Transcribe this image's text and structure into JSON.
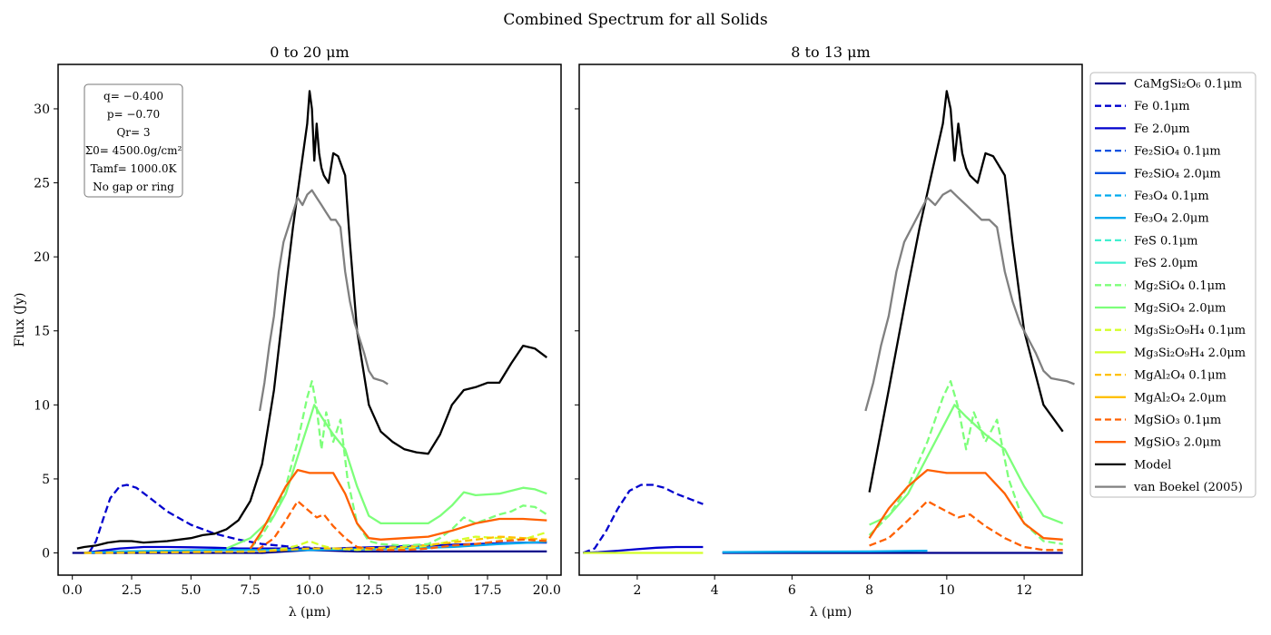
{
  "figure": {
    "suptitle": "Combined Spectrum for all Solids",
    "legend": [
      {
        "label": "CaMgSi₂O₆ 0.1μm",
        "color": "#00008b",
        "dash": false
      },
      {
        "label": "Fe 0.1μm",
        "color": "#0000cd",
        "dash": true
      },
      {
        "label": "Fe 2.0μm",
        "color": "#0000cd",
        "dash": false
      },
      {
        "label": "Fe₂SiO₄ 0.1μm",
        "color": "#0050e0",
        "dash": true
      },
      {
        "label": "Fe₂SiO₄ 2.0μm",
        "color": "#0050e0",
        "dash": false
      },
      {
        "label": "Fe₃O₄ 0.1μm",
        "color": "#00aaee",
        "dash": true
      },
      {
        "label": "Fe₃O₄ 2.0μm",
        "color": "#00aaee",
        "dash": false
      },
      {
        "label": "FeS 0.1μm",
        "color": "#40f0d0",
        "dash": true
      },
      {
        "label": "FeS 2.0μm",
        "color": "#40f0d0",
        "dash": false
      },
      {
        "label": "Mg₂SiO₄ 0.1μm",
        "color": "#7dff7a",
        "dash": true
      },
      {
        "label": "Mg₂SiO₄ 2.0μm",
        "color": "#7dff7a",
        "dash": false
      },
      {
        "label": "Mg₃Si₂O₉H₄ 0.1μm",
        "color": "#d4ff2a",
        "dash": true
      },
      {
        "label": "Mg₃Si₂O₉H₄ 2.0μm",
        "color": "#d4ff2a",
        "dash": false
      },
      {
        "label": "MgAl₂O₄ 0.1μm",
        "color": "#ffc000",
        "dash": true
      },
      {
        "label": "MgAl₂O₄ 2.0μm",
        "color": "#ffc000",
        "dash": false
      },
      {
        "label": "MgSiO₃ 0.1μm",
        "color": "#ff6000",
        "dash": true
      },
      {
        "label": "MgSiO₃ 2.0μm",
        "color": "#ff6000",
        "dash": false
      },
      {
        "label": "Model",
        "color": "#000000",
        "dash": false
      },
      {
        "label": "van Boekel (2005)",
        "color": "#808080",
        "dash": false
      }
    ],
    "param_box": [
      "q= −0.400",
      "p= −0.70",
      "Qr= 3",
      "Σ0= 4500.0g/cm²",
      "Tamf= 1000.0K",
      "No gap or ring"
    ]
  },
  "chart_data": [
    {
      "type": "line",
      "title": "0 to 20 μm",
      "xlabel": "λ (μm)",
      "ylabel": "Flux (Jy)",
      "xlim": [
        -0.6,
        20.6
      ],
      "ylim": [
        -1.5,
        33
      ],
      "xticks": [
        0,
        2.5,
        5,
        7.5,
        10,
        12.5,
        15,
        17.5,
        20
      ],
      "xtick_labels": [
        "0.0",
        "2.5",
        "5.0",
        "7.5",
        "10.0",
        "12.5",
        "15.0",
        "17.5",
        "20.0"
      ],
      "yticks": [
        0,
        5,
        10,
        15,
        20,
        25,
        30
      ],
      "series": [
        {
          "name": "Fe 0.1μm",
          "color": "#0000cd",
          "dash": true,
          "x": [
            0.7,
            1.0,
            1.3,
            1.6,
            2.0,
            2.3,
            2.7,
            3.2,
            4,
            5,
            6,
            7,
            8,
            9,
            10,
            10.5
          ],
          "y": [
            0,
            0.8,
            2.3,
            3.7,
            4.5,
            4.6,
            4.4,
            3.8,
            2.8,
            1.9,
            1.3,
            0.9,
            0.6,
            0.45,
            0.35,
            0.3
          ]
        },
        {
          "name": "Fe 2.0μm",
          "color": "#0000cd",
          "dash": false,
          "x": [
            0.5,
            1,
            2,
            3,
            4,
            5,
            6,
            7,
            8,
            9,
            10,
            11,
            12,
            13,
            14,
            15,
            16,
            17,
            18,
            19,
            20
          ],
          "y": [
            0,
            0.1,
            0.3,
            0.4,
            0.4,
            0.38,
            0.35,
            0.3,
            0.3,
            0.3,
            0.3,
            0.3,
            0.35,
            0.4,
            0.45,
            0.5,
            0.55,
            0.6,
            0.65,
            0.7,
            0.7
          ]
        },
        {
          "name": "CaMgSi₂O₆ 0.1μm",
          "color": "#00008b",
          "dash": false,
          "x": [
            0,
            5,
            8,
            9,
            10,
            11,
            12,
            13,
            15,
            17,
            20
          ],
          "y": [
            0,
            0,
            0,
            0.1,
            0.2,
            0.15,
            0.1,
            0.1,
            0.1,
            0.1,
            0.1
          ]
        },
        {
          "name": "Fe₃O₄ 2.0μm",
          "color": "#00aaee",
          "dash": false,
          "x": [
            0.5,
            2,
            4,
            6,
            8,
            10,
            12,
            14,
            16,
            18,
            20
          ],
          "y": [
            0,
            0.1,
            0.15,
            0.2,
            0.2,
            0.2,
            0.25,
            0.3,
            0.4,
            0.6,
            0.75
          ]
        },
        {
          "name": "Mg₃Si₂O₉H₄ 0.1μm",
          "color": "#d4ff2a",
          "dash": true,
          "x": [
            0.5,
            8,
            9,
            9.5,
            10,
            10.5,
            11,
            12,
            14,
            15,
            16,
            17,
            18,
            19,
            20
          ],
          "y": [
            0,
            0.1,
            0.3,
            0.5,
            0.8,
            0.5,
            0.3,
            0.2,
            0.3,
            0.5,
            0.8,
            1.1,
            1.0,
            0.9,
            1.4
          ]
        },
        {
          "name": "MgAl₂O₄ 0.1μm",
          "color": "#ffc000",
          "dash": true,
          "x": [
            0.5,
            8,
            10,
            12,
            14,
            16,
            18,
            20
          ],
          "y": [
            0,
            0.1,
            0.3,
            0.3,
            0.4,
            0.7,
            1.1,
            0.9
          ]
        },
        {
          "name": "Mg₂SiO₄ 0.1μm",
          "color": "#7dff7a",
          "dash": true,
          "x": [
            7.5,
            8,
            8.5,
            9,
            9.5,
            9.9,
            10.1,
            10.3,
            10.5,
            10.7,
            11.0,
            11.3,
            11.6,
            12,
            12.5,
            13,
            14,
            15,
            15.5,
            16,
            16.5,
            17,
            17.5,
            18,
            18.5,
            19,
            19.5,
            20
          ],
          "y": [
            0.3,
            1.2,
            2.5,
            4.5,
            7.5,
            10.5,
            11.6,
            9.8,
            7.0,
            9.5,
            7.5,
            9.0,
            5.0,
            2.0,
            0.8,
            0.6,
            0.5,
            0.6,
            1.0,
            1.6,
            2.4,
            2.0,
            2.3,
            2.6,
            2.8,
            3.2,
            3.1,
            2.6
          ]
        },
        {
          "name": "Mg₂SiO₄ 2.0μm",
          "color": "#7dff7a",
          "dash": false,
          "x": [
            6.5,
            7.5,
            8.5,
            9,
            9.5,
            10,
            10.2,
            10.5,
            11,
            11.5,
            12,
            12.5,
            13,
            14,
            15,
            15.5,
            16,
            16.5,
            17,
            18,
            19,
            19.5,
            20
          ],
          "y": [
            0.3,
            1.0,
            2.5,
            4.0,
            6.5,
            9.0,
            10.0,
            9.2,
            8.0,
            7.0,
            4.5,
            2.5,
            2.0,
            2.0,
            2.0,
            2.5,
            3.2,
            4.1,
            3.9,
            4.0,
            4.4,
            4.3,
            4.0
          ]
        },
        {
          "name": "MgSiO₃ 0.1μm",
          "color": "#ff6000",
          "dash": true,
          "x": [
            7.8,
            8.5,
            9,
            9.5,
            10,
            10.3,
            10.6,
            11,
            11.5,
            12,
            13,
            14,
            15,
            16,
            17,
            18,
            19,
            20
          ],
          "y": [
            0.2,
            1.0,
            2.2,
            3.5,
            2.8,
            2.4,
            2.6,
            1.8,
            1.0,
            0.4,
            0.2,
            0.2,
            0.3,
            0.5,
            0.6,
            0.8,
            0.9,
            0.8
          ]
        },
        {
          "name": "MgSiO₃ 2.0μm",
          "color": "#ff6000",
          "dash": false,
          "x": [
            7.5,
            8,
            8.5,
            9,
            9.5,
            10,
            10.5,
            11,
            11.5,
            12,
            12.5,
            13,
            14,
            15,
            16,
            17,
            18,
            19,
            20
          ],
          "y": [
            0.3,
            1.5,
            3.0,
            4.5,
            5.6,
            5.4,
            5.4,
            5.4,
            4.0,
            2.0,
            1.0,
            0.9,
            1.0,
            1.1,
            1.5,
            2.0,
            2.3,
            2.3,
            2.2
          ]
        },
        {
          "name": "Model",
          "color": "#000000",
          "dash": false,
          "x": [
            0.2,
            0.5,
            1,
            1.5,
            2,
            2.5,
            3,
            4,
            5,
            5.5,
            6,
            6.5,
            7,
            7.5,
            8,
            8.5,
            9,
            9.3,
            9.6,
            9.9,
            10.0,
            10.1,
            10.2,
            10.3,
            10.4,
            10.5,
            10.6,
            10.8,
            11.0,
            11.2,
            11.5,
            11.7,
            12,
            12.5,
            13,
            13.5,
            14,
            14.5,
            15,
            15.5,
            16,
            16.5,
            17,
            17.5,
            18,
            18.5,
            19,
            19.5,
            20
          ],
          "y": [
            0.3,
            0.4,
            0.5,
            0.7,
            0.8,
            0.8,
            0.7,
            0.8,
            1.0,
            1.2,
            1.3,
            1.6,
            2.2,
            3.5,
            6.0,
            11.0,
            18.0,
            22.0,
            25.5,
            29.0,
            31.2,
            30.0,
            26.5,
            29.0,
            27.0,
            26.0,
            25.5,
            25.0,
            27.0,
            26.8,
            25.5,
            21.0,
            15.0,
            10.0,
            8.2,
            7.5,
            7.0,
            6.8,
            6.7,
            8.0,
            10.0,
            11.0,
            11.2,
            11.5,
            11.5,
            12.8,
            14.0,
            13.8,
            13.2
          ]
        },
        {
          "name": "van Boekel (2005)",
          "color": "#808080",
          "dash": false,
          "x": [
            7.9,
            8.1,
            8.3,
            8.5,
            8.7,
            8.9,
            9.1,
            9.3,
            9.5,
            9.7,
            9.9,
            10.1,
            10.3,
            10.5,
            10.7,
            10.9,
            11.1,
            11.3,
            11.5,
            11.7,
            11.9,
            12.1,
            12.3,
            12.5,
            12.7,
            12.9,
            13.1,
            13.3
          ],
          "y": [
            9.6,
            11.5,
            14.0,
            16.0,
            19.0,
            21.0,
            22.0,
            23.0,
            24.0,
            23.5,
            24.2,
            24.5,
            24.0,
            23.5,
            23.0,
            22.5,
            22.5,
            22.0,
            19.0,
            17.0,
            15.5,
            14.5,
            13.5,
            12.3,
            11.8,
            11.7,
            11.6,
            11.4
          ]
        }
      ]
    },
    {
      "type": "line",
      "title": "8 to 13 μm",
      "xlabel": "λ (μm)",
      "ylabel": "",
      "xlim": [
        0.5,
        13.5
      ],
      "ylim": [
        -1.5,
        33
      ],
      "xticks": [
        2,
        4,
        6,
        8,
        10,
        12
      ],
      "xtick_labels": [
        "2",
        "4",
        "6",
        "8",
        "10",
        "12"
      ],
      "yticks": [
        0,
        5,
        10,
        15,
        20,
        25,
        30
      ],
      "series": [
        {
          "name": "Fe 0.1μm",
          "color": "#0000cd",
          "dash": true,
          "x": [
            0.6,
            0.9,
            1.2,
            1.5,
            1.8,
            2.1,
            2.4,
            2.7,
            3.0,
            3.3,
            3.7
          ],
          "y": [
            0,
            0.3,
            1.5,
            3.0,
            4.2,
            4.6,
            4.6,
            4.4,
            4.0,
            3.7,
            3.3
          ]
        },
        {
          "name": "Fe 2.0μm",
          "color": "#0000cd",
          "dash": false,
          "x": [
            0.6,
            1,
            1.5,
            2,
            2.5,
            3,
            3.7
          ],
          "y": [
            0,
            0.05,
            0.15,
            0.25,
            0.35,
            0.4,
            0.4
          ]
        },
        {
          "name": "CaMgSi₂O₆ 0.1μm",
          "color": "#00008b",
          "dash": false,
          "x": [
            4.2,
            8,
            9.5,
            13
          ],
          "y": [
            0,
            0,
            0,
            0
          ]
        },
        {
          "name": "Fe₃O₄ 2.0μm",
          "color": "#00aaee",
          "dash": false,
          "x": [
            4.2,
            6,
            8,
            9.5
          ],
          "y": [
            0.05,
            0.08,
            0.1,
            0.15
          ]
        },
        {
          "name": "Mg₃Si₂O₉H₄ 2.0μm",
          "color": "#d4ff2a",
          "dash": false,
          "x": [
            0.6,
            3.7
          ],
          "y": [
            0,
            0
          ]
        },
        {
          "name": "Mg₂SiO₄ 0.1μm",
          "color": "#7dff7a",
          "dash": true,
          "x": [
            8,
            8.5,
            9,
            9.5,
            9.9,
            10.1,
            10.3,
            10.5,
            10.7,
            11.0,
            11.3,
            11.6,
            12,
            12.5,
            13
          ],
          "y": [
            1.2,
            2.5,
            4.5,
            7.5,
            10.5,
            11.6,
            9.8,
            7.0,
            9.5,
            7.5,
            9.0,
            5.0,
            2.0,
            0.8,
            0.6
          ]
        },
        {
          "name": "Mg₂SiO₄ 2.0μm",
          "color": "#7dff7a",
          "dash": false,
          "x": [
            8,
            8.5,
            9,
            9.5,
            10,
            10.2,
            10.5,
            11,
            11.5,
            12,
            12.5,
            13
          ],
          "y": [
            1.9,
            2.5,
            4.0,
            6.5,
            9.0,
            10.0,
            9.2,
            8.0,
            7.0,
            4.5,
            2.5,
            2.0
          ]
        },
        {
          "name": "MgSiO₃ 0.1μm",
          "color": "#ff6000",
          "dash": true,
          "x": [
            8,
            8.5,
            9,
            9.5,
            10,
            10.3,
            10.6,
            11,
            11.5,
            12,
            12.5,
            13
          ],
          "y": [
            0.5,
            1.0,
            2.2,
            3.5,
            2.8,
            2.4,
            2.6,
            1.8,
            1.0,
            0.4,
            0.2,
            0.2
          ]
        },
        {
          "name": "MgSiO₃ 2.0μm",
          "color": "#ff6000",
          "dash": false,
          "x": [
            8,
            8.5,
            9,
            9.5,
            10,
            10.5,
            11,
            11.5,
            12,
            12.5,
            13
          ],
          "y": [
            1.0,
            3.0,
            4.5,
            5.6,
            5.4,
            5.4,
            5.4,
            4.0,
            2.0,
            1.0,
            0.9
          ]
        },
        {
          "name": "Model",
          "color": "#000000",
          "dash": false,
          "x": [
            8,
            8.5,
            9,
            9.3,
            9.6,
            9.9,
            10.0,
            10.1,
            10.2,
            10.3,
            10.4,
            10.5,
            10.6,
            10.8,
            11.0,
            11.2,
            11.5,
            11.7,
            12,
            12.5,
            13
          ],
          "y": [
            4.1,
            11.0,
            18.0,
            22.0,
            25.5,
            29.0,
            31.2,
            30.0,
            26.5,
            29.0,
            27.0,
            26.0,
            25.5,
            25.0,
            27.0,
            26.8,
            25.5,
            21.0,
            15.0,
            10.0,
            8.2
          ]
        },
        {
          "name": "van Boekel (2005)",
          "color": "#808080",
          "dash": false,
          "x": [
            7.9,
            8.1,
            8.3,
            8.5,
            8.7,
            8.9,
            9.1,
            9.3,
            9.5,
            9.7,
            9.9,
            10.1,
            10.3,
            10.5,
            10.7,
            10.9,
            11.1,
            11.3,
            11.5,
            11.7,
            11.9,
            12.1,
            12.3,
            12.5,
            12.7,
            12.9,
            13.1,
            13.3
          ],
          "y": [
            9.6,
            11.5,
            14.0,
            16.0,
            19.0,
            21.0,
            22.0,
            23.0,
            24.0,
            23.5,
            24.2,
            24.5,
            24.0,
            23.5,
            23.0,
            22.5,
            22.5,
            22.0,
            19.0,
            17.0,
            15.5,
            14.5,
            13.5,
            12.3,
            11.8,
            11.7,
            11.6,
            11.4
          ]
        }
      ]
    }
  ]
}
